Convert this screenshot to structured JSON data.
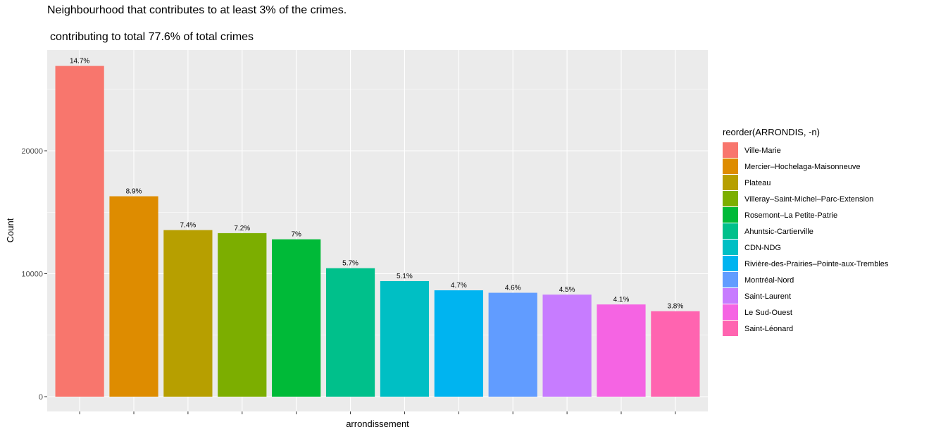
{
  "chart_data": {
    "type": "bar",
    "title": "Neighbourhood that contributes to at least 3% of the crimes.",
    "subtitle": "contributing to total 77.6% of total crimes",
    "xlabel": "arrondissement",
    "ylabel": "Count",
    "ylim": [
      0,
      28000
    ],
    "yticks": [
      0,
      10000,
      20000
    ],
    "grid": true,
    "legend_title": "reorder(ARRONDIS, -n)",
    "legend_position": "right",
    "categories": [
      "Ville-Marie",
      "Mercier–Hochelaga-Maisonneuve",
      "Plateau",
      "Villeray–Saint-Michel–Parc-Extension",
      "Rosemont–La Petite-Patrie",
      "Ahuntsic-Cartierville",
      "CDN-NDG",
      "Rivière-des-Prairies–Pointe-aux-Trembles",
      "Montréal-Nord",
      "Saint-Laurent",
      "Le Sud-Ouest",
      "Saint-Léonard"
    ],
    "values": [
      26900,
      16300,
      13550,
      13300,
      12800,
      10450,
      9400,
      8650,
      8450,
      8300,
      7500,
      6950
    ],
    "labels": [
      "14.7%",
      "8.9%",
      "7.4%",
      "7.2%",
      "7%",
      "5.7%",
      "5.1%",
      "4.7%",
      "4.6%",
      "4.5%",
      "4.1%",
      "3.8%"
    ],
    "colors": [
      "#F8766D",
      "#DE8C00",
      "#B79F00",
      "#7CAE00",
      "#00BA38",
      "#00C08B",
      "#00BFC4",
      "#00B4F0",
      "#619CFF",
      "#C77CFF",
      "#F564E3",
      "#FF64B0"
    ]
  }
}
